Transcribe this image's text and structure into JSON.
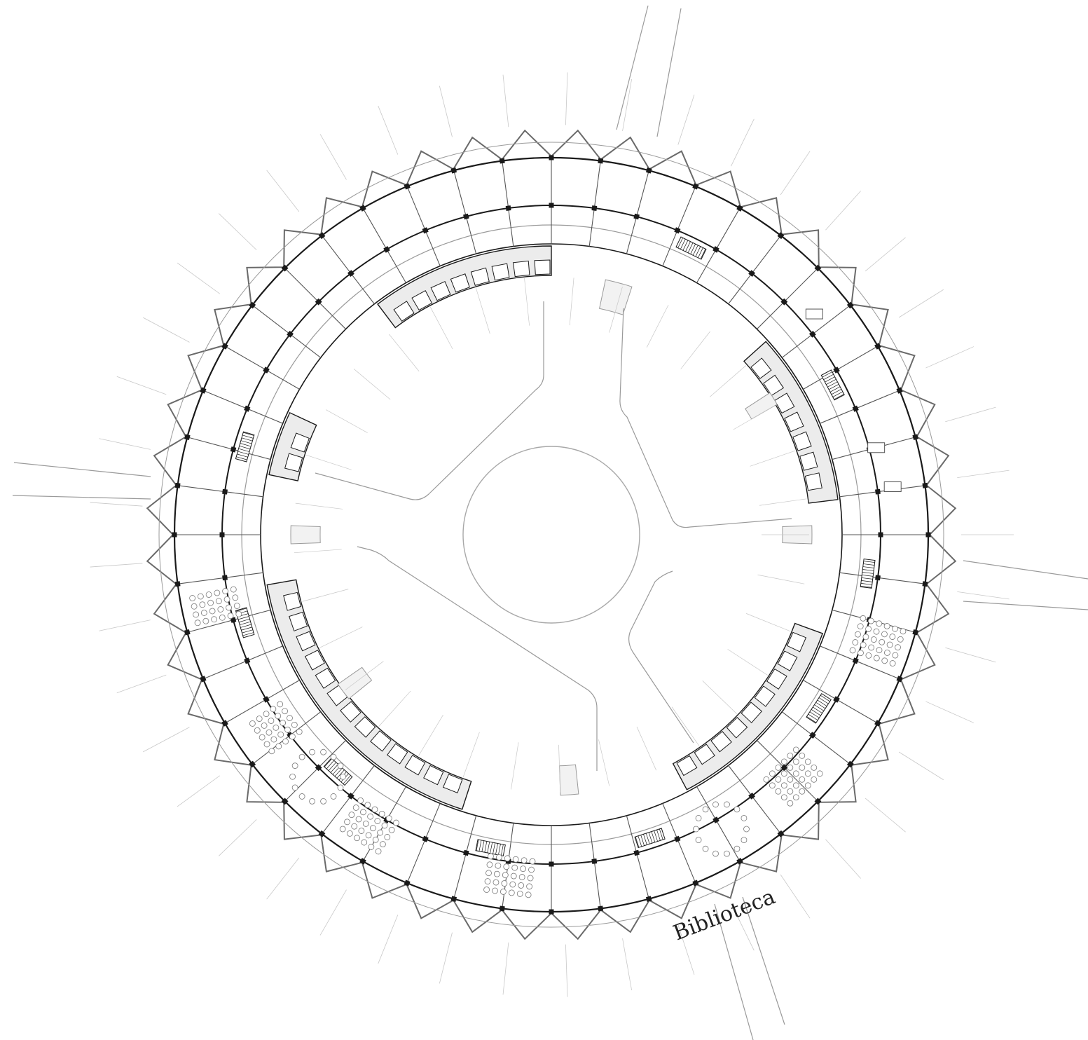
{
  "plan": {
    "label": "Biblioteca",
    "colors": {
      "line": "#1a1a1a",
      "thin": "#9a9a9a",
      "faint": "#c8c8c8",
      "fill": "#ececec",
      "paper": "#ffffff"
    },
    "icons": [
      "chair-icon",
      "desk-icon",
      "stair-icon",
      "window-icon",
      "column-icon"
    ]
  }
}
